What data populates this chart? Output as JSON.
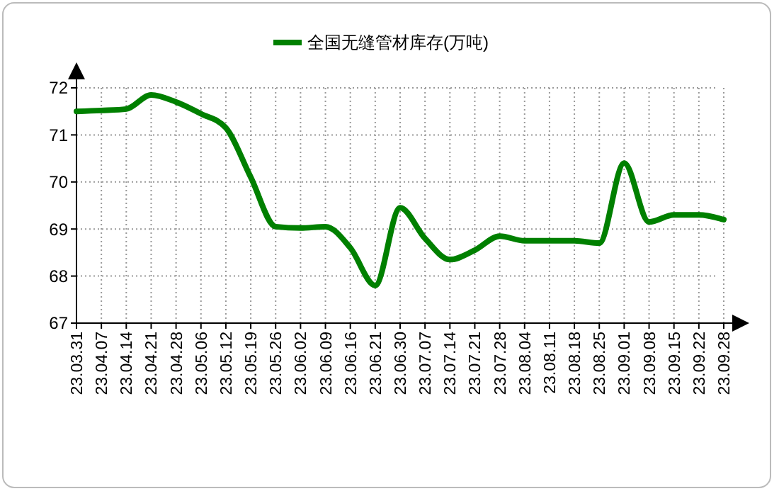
{
  "chart_data": {
    "type": "line",
    "categories": [
      "23.03.31",
      "23.04.07",
      "23.04.14",
      "23.04.21",
      "23.04.28",
      "23.05.06",
      "23.05.12",
      "23.05.19",
      "23.05.26",
      "23.06.02",
      "23.06.09",
      "23.06.16",
      "23.06.21",
      "23.06.30",
      "23.07.07",
      "23.07.14",
      "23.07.21",
      "23.07.28",
      "23.08.04",
      "23.08.11",
      "23.08.18",
      "23.08.25",
      "23.09.01",
      "23.09.08",
      "23.09.15",
      "23.09.22",
      "23.09.28"
    ],
    "series": [
      {
        "name": "全国无缝管材库存(万吨)",
        "color": "#008000",
        "values": [
          71.5,
          71.52,
          71.55,
          71.85,
          71.7,
          71.45,
          71.15,
          70.1,
          69.05,
          69.02,
          69.05,
          68.6,
          67.8,
          69.45,
          68.8,
          68.35,
          68.55,
          68.85,
          68.75,
          68.75,
          68.75,
          68.7,
          70.4,
          69.15,
          69.3,
          69.3,
          69.2
        ]
      }
    ],
    "ylim": [
      67,
      72
    ],
    "yticks": [
      67,
      68,
      69,
      70,
      71,
      72
    ],
    "grid": true,
    "legend": "top",
    "marker": "none",
    "line_style": "solid"
  }
}
